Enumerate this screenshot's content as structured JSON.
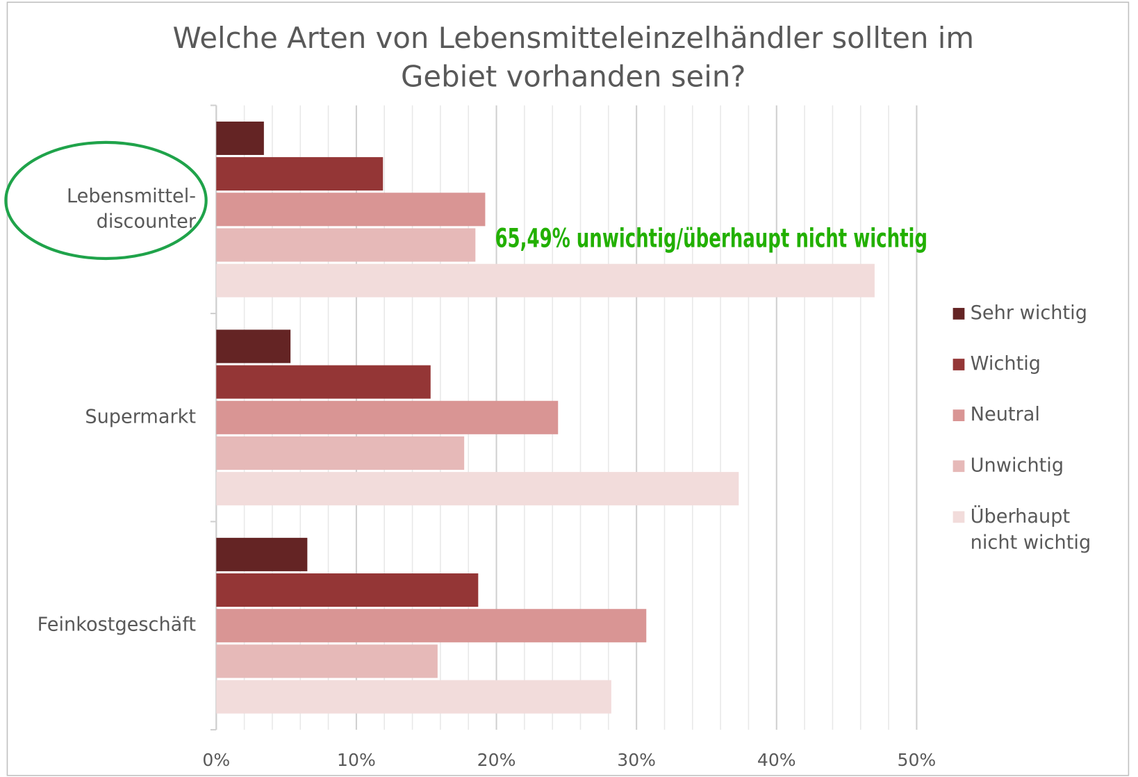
{
  "chart_data": {
    "type": "barh",
    "title": "Welche Arten von Lebensmitteleinzelhändler sollten im\nGebiet vorhanden sein?",
    "categories": [
      "Lebensmittel-\ndiscounter",
      "Supermarkt",
      "Feinkostgeschäft"
    ],
    "series": [
      {
        "name": "Sehr wichtig",
        "color": "#642424",
        "values": [
          3.4,
          5.3,
          6.5
        ]
      },
      {
        "name": "Wichtig",
        "color": "#943636",
        "values": [
          11.9,
          15.3,
          18.7
        ]
      },
      {
        "name": "Neutral",
        "color": "#d99594",
        "values": [
          19.2,
          24.4,
          30.7
        ]
      },
      {
        "name": "Unwichtig",
        "color": "#e6b9b8",
        "values": [
          18.5,
          17.7,
          15.8
        ]
      },
      {
        "name": "Überhaupt\nnicht wichtig",
        "color": "#f2dcdb",
        "values": [
          47.0,
          37.3,
          28.2
        ]
      }
    ],
    "annotation": "65,49% unwichtig/überhaupt nicht wichtig",
    "xlim": [
      0,
      50
    ],
    "xticks": [
      {
        "value": 0,
        "label": "0%"
      },
      {
        "value": 10,
        "label": "10%"
      },
      {
        "value": 20,
        "label": "20%"
      },
      {
        "value": 30,
        "label": "30%"
      },
      {
        "value": 40,
        "label": "40%"
      },
      {
        "value": 50,
        "label": "50%"
      }
    ],
    "minor_xticks": [
      2,
      4,
      6,
      8,
      12,
      14,
      16,
      18,
      22,
      24,
      26,
      28,
      32,
      34,
      36,
      38,
      42,
      44,
      46,
      48
    ],
    "grid": true,
    "legend": "right"
  }
}
